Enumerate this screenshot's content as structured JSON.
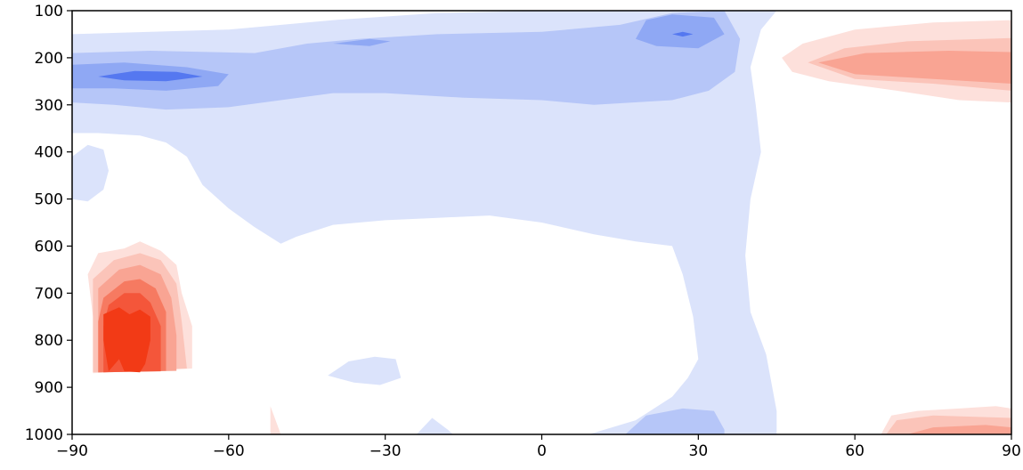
{
  "chart_data": {
    "type": "contour",
    "title": "",
    "xlabel": "",
    "ylabel": "",
    "xlim": [
      -90,
      90
    ],
    "ylim": [
      1000,
      100
    ],
    "x_ticks": [
      -90,
      -60,
      -30,
      0,
      30,
      60,
      90
    ],
    "x_tick_labels": [
      "−90",
      "−60",
      "−30",
      "0",
      "30",
      "60",
      "90"
    ],
    "y_ticks": [
      100,
      200,
      300,
      400,
      500,
      600,
      700,
      800,
      900,
      1000
    ],
    "y_tick_labels": [
      "100",
      "200",
      "300",
      "400",
      "500",
      "600",
      "700",
      "800",
      "900",
      "1000"
    ],
    "grid": false,
    "legend": "none",
    "colormap": "diverging blue-white-red",
    "colors": {
      "neg1": "#dbe3fb",
      "neg2": "#b6c6f8",
      "neg3": "#8fa8f4",
      "neg4": "#5578f0",
      "pos1": "#fde0db",
      "pos2": "#fbc4b9",
      "pos3": "#f9a493",
      "pos4": "#f67a61",
      "pos5": "#f4563a",
      "pos6": "#f23a16"
    },
    "regions": [
      {
        "level": "neg1",
        "points": [
          [
            -90,
            150
          ],
          [
            -60,
            140
          ],
          [
            -40,
            120
          ],
          [
            -20,
            105
          ],
          [
            0,
            100
          ],
          [
            20,
            100
          ],
          [
            40,
            100
          ],
          [
            45,
            100
          ],
          [
            42,
            140
          ],
          [
            40,
            220
          ],
          [
            41,
            300
          ],
          [
            42,
            400
          ],
          [
            40,
            500
          ],
          [
            39,
            620
          ],
          [
            40,
            740
          ],
          [
            43,
            830
          ],
          [
            45,
            950
          ],
          [
            45,
            1000
          ],
          [
            9,
            1000
          ],
          [
            18,
            970
          ],
          [
            25,
            920
          ],
          [
            28,
            880
          ],
          [
            30,
            840
          ],
          [
            29,
            750
          ],
          [
            27,
            660
          ],
          [
            25,
            600
          ],
          [
            18,
            590
          ],
          [
            10,
            575
          ],
          [
            0,
            550
          ],
          [
            -10,
            535
          ],
          [
            -20,
            540
          ],
          [
            -30,
            545
          ],
          [
            -40,
            555
          ],
          [
            -47,
            580
          ],
          [
            -50,
            595
          ],
          [
            -55,
            560
          ],
          [
            -60,
            520
          ],
          [
            -65,
            470
          ],
          [
            -68,
            410
          ],
          [
            -72,
            380
          ],
          [
            -77,
            365
          ],
          [
            -85,
            360
          ],
          [
            -90,
            360
          ]
        ]
      },
      {
        "level": "neg1",
        "points": [
          [
            -90,
            410
          ],
          [
            -87,
            385
          ],
          [
            -84,
            395
          ],
          [
            -83,
            440
          ],
          [
            -84,
            480
          ],
          [
            -87,
            505
          ],
          [
            -90,
            500
          ]
        ]
      },
      {
        "level": "neg1",
        "points": [
          [
            -41,
            875
          ],
          [
            -37,
            845
          ],
          [
            -32,
            835
          ],
          [
            -28,
            840
          ],
          [
            -27,
            880
          ],
          [
            -31,
            895
          ],
          [
            -36,
            890
          ]
        ]
      },
      {
        "level": "neg1",
        "points": [
          [
            -24,
            1000
          ],
          [
            -21,
            965
          ],
          [
            -18,
            990
          ],
          [
            -17,
            1000
          ]
        ]
      },
      {
        "level": "neg2",
        "points": [
          [
            -90,
            190
          ],
          [
            -75,
            185
          ],
          [
            -55,
            190
          ],
          [
            -45,
            170
          ],
          [
            -35,
            160
          ],
          [
            -20,
            150
          ],
          [
            0,
            145
          ],
          [
            15,
            130
          ],
          [
            25,
            105
          ],
          [
            35,
            100
          ],
          [
            38,
            160
          ],
          [
            37,
            230
          ],
          [
            32,
            270
          ],
          [
            25,
            290
          ],
          [
            10,
            300
          ],
          [
            0,
            290
          ],
          [
            -15,
            285
          ],
          [
            -30,
            275
          ],
          [
            -40,
            275
          ],
          [
            -50,
            290
          ],
          [
            -60,
            305
          ],
          [
            -72,
            310
          ],
          [
            -82,
            300
          ],
          [
            -90,
            295
          ]
        ]
      },
      {
        "level": "neg2",
        "points": [
          [
            16,
            1000
          ],
          [
            20,
            960
          ],
          [
            27,
            945
          ],
          [
            33,
            950
          ],
          [
            35,
            990
          ],
          [
            35,
            1000
          ]
        ]
      },
      {
        "level": "neg3",
        "points": [
          [
            -90,
            215
          ],
          [
            -80,
            210
          ],
          [
            -68,
            220
          ],
          [
            -60,
            235
          ],
          [
            -62,
            260
          ],
          [
            -72,
            270
          ],
          [
            -82,
            265
          ],
          [
            -90,
            265
          ]
        ]
      },
      {
        "level": "neg3",
        "points": [
          [
            -40,
            170
          ],
          [
            -33,
            160
          ],
          [
            -29,
            165
          ],
          [
            -33,
            175
          ]
        ]
      },
      {
        "level": "neg3",
        "points": [
          [
            18,
            160
          ],
          [
            20,
            120
          ],
          [
            25,
            108
          ],
          [
            33,
            115
          ],
          [
            35,
            150
          ],
          [
            30,
            180
          ],
          [
            22,
            175
          ]
        ]
      },
      {
        "level": "neg4",
        "points": [
          [
            -85,
            240
          ],
          [
            -78,
            228
          ],
          [
            -70,
            230
          ],
          [
            -65,
            240
          ],
          [
            -72,
            250
          ],
          [
            -80,
            248
          ]
        ]
      },
      {
        "level": "neg4",
        "points": [
          [
            25,
            150
          ],
          [
            27,
            145
          ],
          [
            29,
            150
          ],
          [
            27,
            155
          ]
        ]
      },
      {
        "level": "pos1",
        "points": [
          [
            46,
            200
          ],
          [
            50,
            170
          ],
          [
            60,
            140
          ],
          [
            75,
            125
          ],
          [
            90,
            120
          ],
          [
            90,
            295
          ],
          [
            80,
            290
          ],
          [
            68,
            270
          ],
          [
            55,
            250
          ],
          [
            48,
            230
          ]
        ]
      },
      {
        "level": "pos1",
        "points": [
          [
            65,
            1000
          ],
          [
            67,
            960
          ],
          [
            72,
            950
          ],
          [
            80,
            945
          ],
          [
            87,
            940
          ],
          [
            90,
            945
          ],
          [
            90,
            1000
          ]
        ]
      },
      {
        "level": "pos1",
        "points": [
          [
            -86,
            750
          ],
          [
            -87,
            660
          ],
          [
            -85,
            615
          ],
          [
            -80,
            605
          ],
          [
            -77,
            590
          ],
          [
            -73,
            610
          ],
          [
            -70,
            640
          ],
          [
            -69,
            700
          ],
          [
            -67,
            770
          ],
          [
            -67,
            860
          ],
          [
            -86,
            870
          ]
        ]
      },
      {
        "level": "pos1",
        "points": [
          [
            -52,
            940
          ],
          [
            -50,
            1000
          ],
          [
            -52,
            1000
          ]
        ]
      },
      {
        "level": "pos2",
        "points": [
          [
            51,
            210
          ],
          [
            58,
            180
          ],
          [
            70,
            165
          ],
          [
            90,
            158
          ],
          [
            90,
            270
          ],
          [
            75,
            255
          ],
          [
            60,
            245
          ]
        ]
      },
      {
        "level": "pos2",
        "points": [
          [
            66,
            1000
          ],
          [
            68,
            970
          ],
          [
            75,
            960
          ],
          [
            90,
            965
          ],
          [
            90,
            1000
          ]
        ]
      },
      {
        "level": "pos2",
        "points": [
          [
            -86,
            750
          ],
          [
            -86,
            670
          ],
          [
            -82,
            630
          ],
          [
            -77,
            615
          ],
          [
            -73,
            630
          ],
          [
            -70,
            680
          ],
          [
            -69,
            760
          ],
          [
            -68,
            860
          ],
          [
            -86,
            868
          ]
        ]
      },
      {
        "level": "pos3",
        "points": [
          [
            53,
            210
          ],
          [
            62,
            190
          ],
          [
            78,
            185
          ],
          [
            90,
            188
          ],
          [
            90,
            255
          ],
          [
            75,
            245
          ],
          [
            60,
            235
          ]
        ]
      },
      {
        "level": "pos3",
        "points": [
          [
            70,
            1000
          ],
          [
            75,
            985
          ],
          [
            85,
            980
          ],
          [
            90,
            985
          ],
          [
            90,
            1000
          ]
        ]
      },
      {
        "level": "pos3",
        "points": [
          [
            -85,
            750
          ],
          [
            -85,
            690
          ],
          [
            -81,
            650
          ],
          [
            -77,
            640
          ],
          [
            -73,
            660
          ],
          [
            -71,
            710
          ],
          [
            -70,
            790
          ],
          [
            -70,
            865
          ],
          [
            -85,
            868
          ]
        ]
      },
      {
        "level": "pos4",
        "points": [
          [
            -85,
            760
          ],
          [
            -84,
            710
          ],
          [
            -80,
            675
          ],
          [
            -77,
            670
          ],
          [
            -74,
            690
          ],
          [
            -72,
            740
          ],
          [
            -72,
            865
          ],
          [
            -85,
            868
          ]
        ]
      },
      {
        "level": "pos5",
        "points": [
          [
            -84,
            770
          ],
          [
            -83,
            725
          ],
          [
            -80,
            700
          ],
          [
            -77,
            700
          ],
          [
            -75,
            720
          ],
          [
            -73,
            770
          ],
          [
            -73,
            866
          ],
          [
            -84,
            868
          ]
        ]
      },
      {
        "level": "pos6",
        "points": [
          [
            -84,
            800
          ],
          [
            -84,
            745
          ],
          [
            -81,
            730
          ],
          [
            -79,
            745
          ],
          [
            -77,
            735
          ],
          [
            -75,
            750
          ],
          [
            -75,
            800
          ],
          [
            -76,
            850
          ],
          [
            -77,
            868
          ],
          [
            -80,
            866
          ],
          [
            -81,
            840
          ],
          [
            -83,
            866
          ]
        ]
      }
    ]
  }
}
